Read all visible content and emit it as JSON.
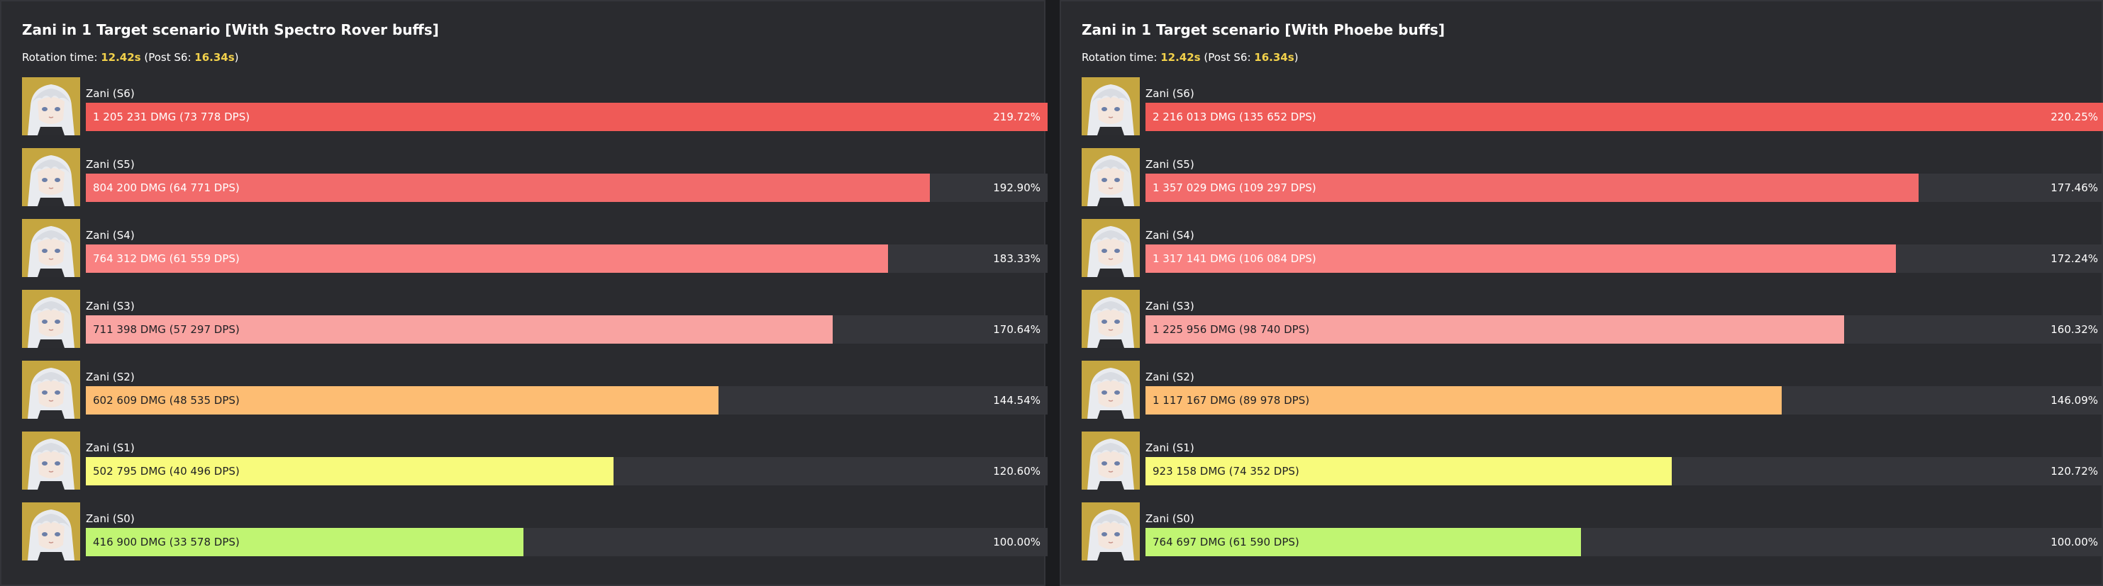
{
  "colors": {
    "S6": "#ef5a57",
    "S5": "#f26b6b",
    "S4": "#f98181",
    "S3": "#f9a3a1",
    "S2": "#fdbd73",
    "S1": "#f8fb7c",
    "S0": "#c0f572"
  },
  "chart_data": [
    {
      "type": "bar",
      "orientation": "horizontal",
      "title": "Zani in 1 Target scenario [With Spectro Rover buffs]",
      "rotation": {
        "prefix": "Rotation time:",
        "time": "12.42s",
        "post_prefix": "(Post S6:",
        "post_time": "16.34s",
        "post_suffix": ")"
      },
      "categories": [
        "Zani (S6)",
        "Zani (S5)",
        "Zani (S4)",
        "Zani (S3)",
        "Zani (S2)",
        "Zani (S1)",
        "Zani (S0)"
      ],
      "values": [
        219.72,
        192.9,
        183.33,
        170.64,
        144.54,
        120.6,
        100.0
      ],
      "xlim": [
        0,
        219.72
      ],
      "bars": [
        {
          "name": "Zani (S6)",
          "key": "S6",
          "text": "1 205 231 DMG (73 778 DPS)",
          "pct": "219.72%",
          "value": 219.72
        },
        {
          "name": "Zani (S5)",
          "key": "S5",
          "text": "804 200 DMG (64 771 DPS)",
          "pct": "192.90%",
          "value": 192.9
        },
        {
          "name": "Zani (S4)",
          "key": "S4",
          "text": "764 312 DMG (61 559 DPS)",
          "pct": "183.33%",
          "value": 183.33
        },
        {
          "name": "Zani (S3)",
          "key": "S3",
          "text": "711 398 DMG (57 297 DPS)",
          "pct": "170.64%",
          "value": 170.64
        },
        {
          "name": "Zani (S2)",
          "key": "S2",
          "text": "602 609 DMG (48 535 DPS)",
          "pct": "144.54%",
          "value": 144.54
        },
        {
          "name": "Zani (S1)",
          "key": "S1",
          "text": "502 795 DMG (40 496 DPS)",
          "pct": "120.60%",
          "value": 120.6
        },
        {
          "name": "Zani (S0)",
          "key": "S0",
          "text": "416 900 DMG (33 578 DPS)",
          "pct": "100.00%",
          "value": 100.0
        }
      ]
    },
    {
      "type": "bar",
      "orientation": "horizontal",
      "title": "Zani in 1 Target scenario [With Phoebe buffs]",
      "rotation": {
        "prefix": "Rotation time:",
        "time": "12.42s",
        "post_prefix": "(Post S6:",
        "post_time": "16.34s",
        "post_suffix": ")"
      },
      "categories": [
        "Zani (S6)",
        "Zani (S5)",
        "Zani (S4)",
        "Zani (S3)",
        "Zani (S2)",
        "Zani (S1)",
        "Zani (S0)"
      ],
      "values": [
        220.25,
        177.46,
        172.24,
        160.32,
        146.09,
        120.72,
        100.0
      ],
      "xlim": [
        0,
        220.25
      ],
      "bars": [
        {
          "name": "Zani (S6)",
          "key": "S6",
          "text": "2 216 013 DMG (135 652 DPS)",
          "pct": "220.25%",
          "value": 220.25
        },
        {
          "name": "Zani (S5)",
          "key": "S5",
          "text": "1 357 029 DMG (109 297 DPS)",
          "pct": "177.46%",
          "value": 177.46
        },
        {
          "name": "Zani (S4)",
          "key": "S4",
          "text": "1 317 141 DMG (106 084 DPS)",
          "pct": "172.24%",
          "value": 172.24
        },
        {
          "name": "Zani (S3)",
          "key": "S3",
          "text": "1 225 956 DMG (98 740 DPS)",
          "pct": "160.32%",
          "value": 160.32
        },
        {
          "name": "Zani (S2)",
          "key": "S2",
          "text": "1 117 167 DMG (89 978 DPS)",
          "pct": "146.09%",
          "value": 146.09
        },
        {
          "name": "Zani (S1)",
          "key": "S1",
          "text": "923 158 DMG (74 352 DPS)",
          "pct": "120.72%",
          "value": 120.72
        },
        {
          "name": "Zani (S0)",
          "key": "S0",
          "text": "764 697 DMG (61 590 DPS)",
          "pct": "100.00%",
          "value": 100.0
        }
      ]
    }
  ]
}
